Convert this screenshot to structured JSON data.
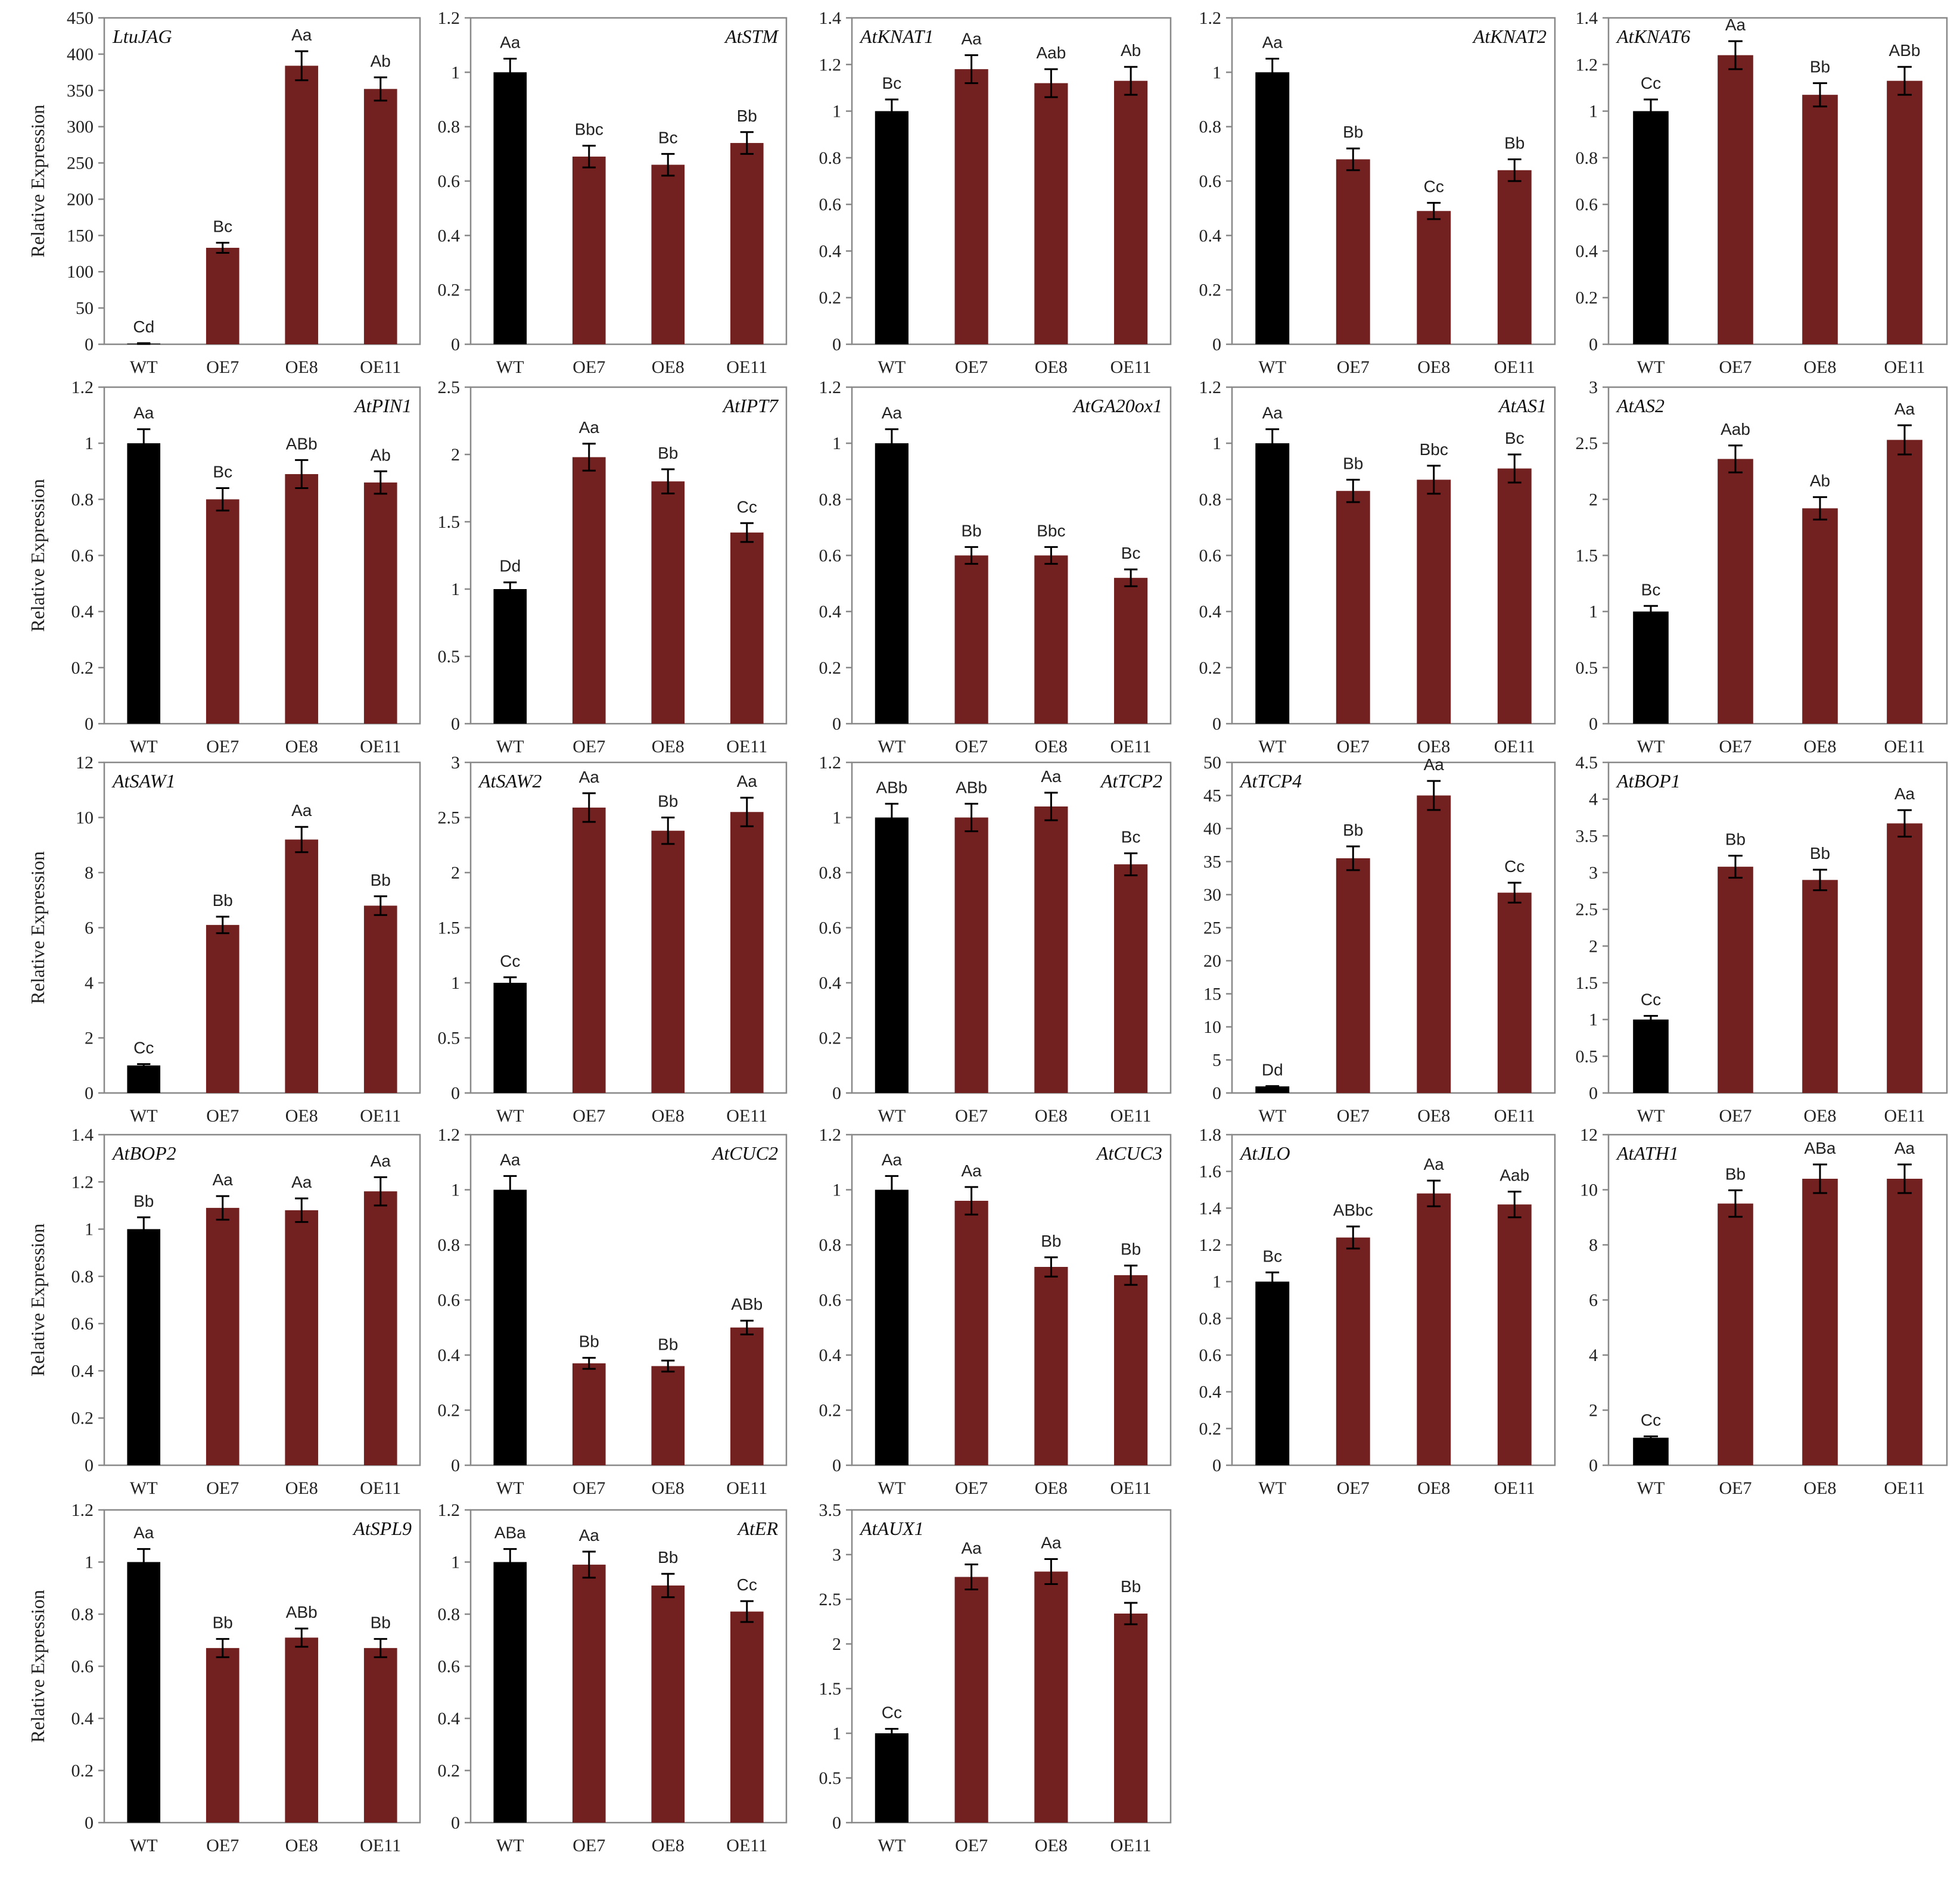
{
  "figure": {
    "ylabel": "Relative Expression",
    "colors": {
      "wt": "#000000",
      "oe": "#722020",
      "axis": "#888888",
      "text": "#222222"
    },
    "categories": [
      "WT",
      "OE7",
      "OE8",
      "OE11"
    ]
  },
  "chart_data": [
    {
      "type": "bar",
      "title": "LtuJAG",
      "title_pos": "left",
      "ylabel": "Relative Expression",
      "ylim": [
        0,
        450
      ],
      "yticks": [
        0,
        50,
        100,
        150,
        200,
        250,
        300,
        350,
        400,
        450
      ],
      "categories": [
        "WT",
        "OE7",
        "OE8",
        "OE11"
      ],
      "values": [
        1,
        133,
        384,
        352
      ],
      "errors": [
        0.5,
        7,
        20,
        16
      ],
      "letters": [
        "Cd",
        "Bc",
        "Aa",
        "Ab"
      ]
    },
    {
      "type": "bar",
      "title": "AtSTM",
      "title_pos": "right",
      "ylabel": "",
      "ylim": [
        0,
        1.2
      ],
      "yticks": [
        0,
        0.2,
        0.4,
        0.6,
        0.8,
        1,
        1.2
      ],
      "categories": [
        "WT",
        "OE7",
        "OE8",
        "OE11"
      ],
      "values": [
        1,
        0.69,
        0.66,
        0.74
      ],
      "errors": [
        0.05,
        0.04,
        0.04,
        0.04
      ],
      "letters": [
        "Aa",
        "Bbc",
        "Bc",
        "Bb"
      ]
    },
    {
      "type": "bar",
      "title": "AtKNAT1",
      "title_pos": "left",
      "ylabel": "",
      "ylim": [
        0,
        1.4
      ],
      "yticks": [
        0,
        0.2,
        0.4,
        0.6,
        0.8,
        1,
        1.2,
        1.4
      ],
      "categories": [
        "WT",
        "OE7",
        "OE8",
        "OE11"
      ],
      "values": [
        1,
        1.18,
        1.12,
        1.13
      ],
      "errors": [
        0.05,
        0.06,
        0.06,
        0.06
      ],
      "letters": [
        "Bc",
        "Aa",
        "Aab",
        "Ab"
      ]
    },
    {
      "type": "bar",
      "title": "AtKNAT2",
      "title_pos": "right",
      "ylabel": "",
      "ylim": [
        0,
        1.2
      ],
      "yticks": [
        0,
        0.2,
        0.4,
        0.6,
        0.8,
        1,
        1.2
      ],
      "categories": [
        "WT",
        "OE7",
        "OE8",
        "OE11"
      ],
      "values": [
        1,
        0.68,
        0.49,
        0.64
      ],
      "errors": [
        0.05,
        0.04,
        0.03,
        0.04
      ],
      "letters": [
        "Aa",
        "Bb",
        "Cc",
        "Bb"
      ]
    },
    {
      "type": "bar",
      "title": "AtKNAT6",
      "title_pos": "left",
      "ylabel": "",
      "ylim": [
        0,
        1.4
      ],
      "yticks": [
        0,
        0.2,
        0.4,
        0.6,
        0.8,
        1,
        1.2,
        1.4
      ],
      "categories": [
        "WT",
        "OE7",
        "OE8",
        "OE11"
      ],
      "values": [
        1,
        1.24,
        1.07,
        1.13
      ],
      "errors": [
        0.05,
        0.06,
        0.05,
        0.06
      ],
      "letters": [
        "Cc",
        "Aa",
        "Bb",
        "ABb"
      ]
    },
    {
      "type": "bar",
      "title": "AtPIN1",
      "title_pos": "right",
      "ylabel": "Relative Expression",
      "ylim": [
        0,
        1.2
      ],
      "yticks": [
        0,
        0.2,
        0.4,
        0.6,
        0.8,
        1,
        1.2
      ],
      "categories": [
        "WT",
        "OE7",
        "OE8",
        "OE11"
      ],
      "values": [
        1,
        0.8,
        0.89,
        0.86
      ],
      "errors": [
        0.05,
        0.04,
        0.05,
        0.04
      ],
      "letters": [
        "Aa",
        "Bc",
        "ABb",
        "Ab"
      ]
    },
    {
      "type": "bar",
      "title": "AtIPT7",
      "title_pos": "right",
      "ylabel": "",
      "ylim": [
        0,
        2.5
      ],
      "yticks": [
        0,
        0.5,
        1,
        1.5,
        2,
        2.5
      ],
      "categories": [
        "WT",
        "OE7",
        "OE8",
        "OE11"
      ],
      "values": [
        1,
        1.98,
        1.8,
        1.42
      ],
      "errors": [
        0.05,
        0.1,
        0.09,
        0.07
      ],
      "letters": [
        "Dd",
        "Aa",
        "Bb",
        "Cc"
      ]
    },
    {
      "type": "bar",
      "title": "AtGA20ox1",
      "title_pos": "right",
      "ylabel": "",
      "ylim": [
        0,
        1.2
      ],
      "yticks": [
        0,
        0.2,
        0.4,
        0.6,
        0.8,
        1,
        1.2
      ],
      "categories": [
        "WT",
        "OE7",
        "OE8",
        "OE11"
      ],
      "values": [
        1,
        0.6,
        0.6,
        0.52
      ],
      "errors": [
        0.05,
        0.03,
        0.03,
        0.03
      ],
      "letters": [
        "Aa",
        "Bb",
        "Bbc",
        "Bc"
      ]
    },
    {
      "type": "bar",
      "title": "AtAS1",
      "title_pos": "right",
      "ylabel": "",
      "ylim": [
        0,
        1.2
      ],
      "yticks": [
        0,
        0.2,
        0.4,
        0.6,
        0.8,
        1,
        1.2
      ],
      "categories": [
        "WT",
        "OE7",
        "OE8",
        "OE11"
      ],
      "values": [
        1,
        0.83,
        0.87,
        0.91
      ],
      "errors": [
        0.05,
        0.04,
        0.05,
        0.05
      ],
      "letters": [
        "Aa",
        "Bb",
        "Bbc",
        "Bc"
      ]
    },
    {
      "type": "bar",
      "title": "AtAS2",
      "title_pos": "left",
      "ylabel": "",
      "ylim": [
        0,
        3
      ],
      "yticks": [
        0,
        0.5,
        1,
        1.5,
        2,
        2.5,
        3
      ],
      "categories": [
        "WT",
        "OE7",
        "OE8",
        "OE11"
      ],
      "values": [
        1,
        2.36,
        1.92,
        2.53
      ],
      "errors": [
        0.05,
        0.12,
        0.1,
        0.13
      ],
      "letters": [
        "Bc",
        "Aab",
        "Ab",
        "Aa"
      ]
    },
    {
      "type": "bar",
      "title": "AtSAW1",
      "title_pos": "left",
      "ylabel": "Relative Expression",
      "ylim": [
        0,
        12
      ],
      "yticks": [
        0,
        2,
        4,
        6,
        8,
        10,
        12
      ],
      "categories": [
        "WT",
        "OE7",
        "OE8",
        "OE11"
      ],
      "values": [
        1,
        6.1,
        9.2,
        6.8
      ],
      "errors": [
        0.05,
        0.3,
        0.46,
        0.34
      ],
      "letters": [
        "Cc",
        "Bb",
        "Aa",
        "Bb"
      ]
    },
    {
      "type": "bar",
      "title": "AtSAW2",
      "title_pos": "left",
      "ylabel": "",
      "ylim": [
        0,
        3
      ],
      "yticks": [
        0,
        0.5,
        1,
        1.5,
        2,
        2.5,
        3
      ],
      "categories": [
        "WT",
        "OE7",
        "OE8",
        "OE11"
      ],
      "values": [
        1,
        2.59,
        2.38,
        2.55
      ],
      "errors": [
        0.05,
        0.13,
        0.12,
        0.13
      ],
      "letters": [
        "Cc",
        "Aa",
        "Bb",
        "Aa"
      ]
    },
    {
      "type": "bar",
      "title": "AtTCP2",
      "title_pos": "right",
      "ylabel": "",
      "ylim": [
        0,
        1.2
      ],
      "yticks": [
        0,
        0.2,
        0.4,
        0.6,
        0.8,
        1,
        1.2
      ],
      "categories": [
        "WT",
        "OE7",
        "OE8",
        "OE11"
      ],
      "values": [
        1,
        1,
        1.04,
        0.83
      ],
      "errors": [
        0.05,
        0.05,
        0.05,
        0.04
      ],
      "letters": [
        "ABb",
        "ABb",
        "Aa",
        "Bc"
      ]
    },
    {
      "type": "bar",
      "title": "AtTCP4",
      "title_pos": "left",
      "ylabel": "",
      "ylim": [
        0,
        50
      ],
      "yticks": [
        0,
        5,
        10,
        15,
        20,
        25,
        30,
        35,
        40,
        45,
        50
      ],
      "categories": [
        "WT",
        "OE7",
        "OE8",
        "OE11"
      ],
      "values": [
        1,
        35.5,
        45,
        30.3
      ],
      "errors": [
        0.05,
        1.8,
        2.2,
        1.5
      ],
      "letters": [
        "Dd",
        "Bb",
        "Aa",
        "Cc"
      ]
    },
    {
      "type": "bar",
      "title": "AtBOP1",
      "title_pos": "left",
      "ylabel": "",
      "ylim": [
        0,
        4.5
      ],
      "yticks": [
        0,
        0.5,
        1,
        1.5,
        2,
        2.5,
        3,
        3.5,
        4,
        4.5
      ],
      "categories": [
        "WT",
        "OE7",
        "OE8",
        "OE11"
      ],
      "values": [
        1,
        3.08,
        2.9,
        3.67
      ],
      "errors": [
        0.05,
        0.15,
        0.14,
        0.18
      ],
      "letters": [
        "Cc",
        "Bb",
        "Bb",
        "Aa"
      ]
    },
    {
      "type": "bar",
      "title": "AtBOP2",
      "title_pos": "left",
      "ylabel": "Relative Expression",
      "ylim": [
        0,
        1.4
      ],
      "yticks": [
        0,
        0.2,
        0.4,
        0.6,
        0.8,
        1,
        1.2,
        1.4
      ],
      "categories": [
        "WT",
        "OE7",
        "OE8",
        "OE11"
      ],
      "values": [
        1,
        1.09,
        1.08,
        1.16
      ],
      "errors": [
        0.05,
        0.05,
        0.05,
        0.06
      ],
      "letters": [
        "Bb",
        "Aa",
        "Aa",
        "Aa"
      ]
    },
    {
      "type": "bar",
      "title": "AtCUC2",
      "title_pos": "right",
      "ylabel": "",
      "ylim": [
        0,
        1.2
      ],
      "yticks": [
        0,
        0.2,
        0.4,
        0.6,
        0.8,
        1,
        1.2
      ],
      "categories": [
        "WT",
        "OE7",
        "OE8",
        "OE11"
      ],
      "values": [
        1,
        0.37,
        0.36,
        0.5
      ],
      "errors": [
        0.05,
        0.02,
        0.02,
        0.025
      ],
      "letters": [
        "Aa",
        "Bb",
        "Bb",
        "ABb"
      ]
    },
    {
      "type": "bar",
      "title": "AtCUC3",
      "title_pos": "right",
      "ylabel": "",
      "ylim": [
        0,
        1.2
      ],
      "yticks": [
        0,
        0.2,
        0.4,
        0.6,
        0.8,
        1,
        1.2
      ],
      "categories": [
        "WT",
        "OE7",
        "OE8",
        "OE11"
      ],
      "values": [
        1,
        0.96,
        0.72,
        0.69
      ],
      "errors": [
        0.05,
        0.05,
        0.035,
        0.035
      ],
      "letters": [
        "Aa",
        "Aa",
        "Bb",
        "Bb"
      ]
    },
    {
      "type": "bar",
      "title": "AtJLO",
      "title_pos": "left",
      "ylabel": "",
      "ylim": [
        0,
        1.8
      ],
      "yticks": [
        0,
        0.2,
        0.4,
        0.6,
        0.8,
        1,
        1.2,
        1.4,
        1.6,
        1.8
      ],
      "categories": [
        "WT",
        "OE7",
        "OE8",
        "OE11"
      ],
      "values": [
        1,
        1.24,
        1.48,
        1.42
      ],
      "errors": [
        0.05,
        0.06,
        0.07,
        0.07
      ],
      "letters": [
        "Bc",
        "ABbc",
        "Aa",
        "Aab"
      ]
    },
    {
      "type": "bar",
      "title": "AtATH1",
      "title_pos": "left",
      "ylabel": "",
      "ylim": [
        0,
        12
      ],
      "yticks": [
        0,
        2,
        4,
        6,
        8,
        10,
        12
      ],
      "categories": [
        "WT",
        "OE7",
        "OE8",
        "OE11"
      ],
      "values": [
        1,
        9.5,
        10.4,
        10.4
      ],
      "errors": [
        0.05,
        0.48,
        0.52,
        0.52
      ],
      "letters": [
        "Cc",
        "Bb",
        "ABa",
        "Aa"
      ]
    },
    {
      "type": "bar",
      "title": "AtSPL9",
      "title_pos": "right",
      "ylabel": "Relative Expression",
      "ylim": [
        0,
        1.2
      ],
      "yticks": [
        0,
        0.2,
        0.4,
        0.6,
        0.8,
        1,
        1.2
      ],
      "categories": [
        "WT",
        "OE7",
        "OE8",
        "OE11"
      ],
      "values": [
        1,
        0.67,
        0.71,
        0.67
      ],
      "errors": [
        0.05,
        0.035,
        0.035,
        0.035
      ],
      "letters": [
        "Aa",
        "Bb",
        "ABb",
        "Bb"
      ]
    },
    {
      "type": "bar",
      "title": "AtER",
      "title_pos": "right",
      "ylabel": "",
      "ylim": [
        0,
        1.2
      ],
      "yticks": [
        0,
        0.2,
        0.4,
        0.6,
        0.8,
        1,
        1.2
      ],
      "categories": [
        "WT",
        "OE7",
        "OE8",
        "OE11"
      ],
      "values": [
        1,
        0.99,
        0.91,
        0.81
      ],
      "errors": [
        0.05,
        0.05,
        0.045,
        0.04
      ],
      "letters": [
        "ABa",
        "Aa",
        "Bb",
        "Cc"
      ]
    },
    {
      "type": "bar",
      "title": "AtAUX1",
      "title_pos": "left",
      "ylabel": "",
      "ylim": [
        0,
        3.5
      ],
      "yticks": [
        0,
        0.5,
        1,
        1.5,
        2,
        2.5,
        3,
        3.5
      ],
      "categories": [
        "WT",
        "OE7",
        "OE8",
        "OE11"
      ],
      "values": [
        1,
        2.75,
        2.81,
        2.34
      ],
      "errors": [
        0.05,
        0.14,
        0.14,
        0.12
      ],
      "letters": [
        "Cc",
        "Aa",
        "Aa",
        "Bb"
      ]
    }
  ]
}
